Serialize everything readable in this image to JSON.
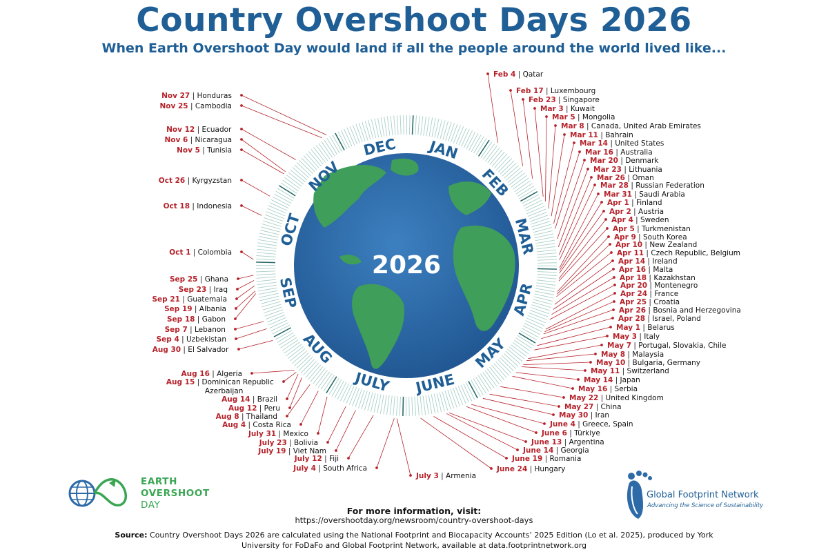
{
  "header": {
    "title": "Country Overshoot Days 2026",
    "subtitle": "When Earth Overshoot Day would land if all the people around the world lived like..."
  },
  "globe": {
    "year_label": "2026",
    "months": [
      "JAN",
      "FEB",
      "MAR",
      "APR",
      "MAY",
      "JUNE",
      "JULY",
      "AUG",
      "SEP",
      "OCT",
      "NOV",
      "DEC"
    ]
  },
  "colors": {
    "title_blue": "#1f5f96",
    "date_red": "#b5222a",
    "ocean": "#2d6aa8",
    "land": "#3f9e5a",
    "ring_teal": "#a9cfc6",
    "brand_green": "#3aa653"
  },
  "chart_data": {
    "type": "radial-timeline",
    "entries": [
      {
        "date": "Feb 4",
        "country": "Qatar"
      },
      {
        "date": "Feb 17",
        "country": "Luxembourg"
      },
      {
        "date": "Feb 23",
        "country": "Singapore"
      },
      {
        "date": "Mar 3",
        "country": "Kuwait"
      },
      {
        "date": "Mar 5",
        "country": "Mongolia"
      },
      {
        "date": "Mar 8",
        "country": "Canada, United Arab Emirates"
      },
      {
        "date": "Mar 11",
        "country": "Bahrain"
      },
      {
        "date": "Mar 14",
        "country": "United States"
      },
      {
        "date": "Mar 16",
        "country": "Australia"
      },
      {
        "date": "Mar 20",
        "country": "Denmark"
      },
      {
        "date": "Mar 23",
        "country": "Lithuania"
      },
      {
        "date": "Mar 26",
        "country": "Oman"
      },
      {
        "date": "Mar 28",
        "country": "Russian Federation"
      },
      {
        "date": "Mar 31",
        "country": "Saudi Arabia"
      },
      {
        "date": "Apr 1",
        "country": "Finland"
      },
      {
        "date": "Apr 2",
        "country": "Austria"
      },
      {
        "date": "Apr 4",
        "country": "Sweden"
      },
      {
        "date": "Apr 5",
        "country": "Turkmenistan"
      },
      {
        "date": "Apr 9",
        "country": "South Korea"
      },
      {
        "date": "Apr 10",
        "country": "New Zealand"
      },
      {
        "date": "Apr 11",
        "country": "Czech Republic, Belgium"
      },
      {
        "date": "Apr 14",
        "country": "Ireland"
      },
      {
        "date": "Apr 16",
        "country": "Malta"
      },
      {
        "date": "Apr 18",
        "country": "Kazakhstan"
      },
      {
        "date": "Apr 20",
        "country": "Montenegro"
      },
      {
        "date": "Apr 24",
        "country": "France"
      },
      {
        "date": "Apr 25",
        "country": "Croatia"
      },
      {
        "date": "Apr 26",
        "country": "Bosnia and Herzegovina"
      },
      {
        "date": "Apr 28",
        "country": "Israel, Poland"
      },
      {
        "date": "May 1",
        "country": "Belarus"
      },
      {
        "date": "May 3",
        "country": "Italy"
      },
      {
        "date": "May 7",
        "country": "Portugal, Slovakia, Chile"
      },
      {
        "date": "May 8",
        "country": "Malaysia"
      },
      {
        "date": "May 10",
        "country": "Bulgaria, Germany"
      },
      {
        "date": "May 11",
        "country": "Switzerland"
      },
      {
        "date": "May 14",
        "country": "Japan"
      },
      {
        "date": "May 16",
        "country": "Serbia"
      },
      {
        "date": "May 22",
        "country": "United Kingdom"
      },
      {
        "date": "May 27",
        "country": "China"
      },
      {
        "date": "May 30",
        "country": "Iran"
      },
      {
        "date": "June 4",
        "country": "Greece, Spain"
      },
      {
        "date": "June 6",
        "country": "Türkiye"
      },
      {
        "date": "June 13",
        "country": "Argentina"
      },
      {
        "date": "June 14",
        "country": "Georgia"
      },
      {
        "date": "June 19",
        "country": "Romania"
      },
      {
        "date": "June 24",
        "country": "Hungary"
      },
      {
        "date": "July 3",
        "country": "Armenia"
      },
      {
        "date": "July 4",
        "country": "South Africa"
      },
      {
        "date": "July 12",
        "country": "Fiji"
      },
      {
        "date": "July 19",
        "country": "Viet Nam"
      },
      {
        "date": "July 23",
        "country": "Bolivia"
      },
      {
        "date": "July 31",
        "country": "Mexico"
      },
      {
        "date": "Aug 4",
        "country": "Costa Rica"
      },
      {
        "date": "Aug 8",
        "country": "Thailand"
      },
      {
        "date": "Aug 12",
        "country": "Peru"
      },
      {
        "date": "Aug 14",
        "country": "Brazil"
      },
      {
        "date": "Aug 15",
        "country": "Dominican Republic Azerbaijan"
      },
      {
        "date": "Aug 16",
        "country": "Algeria"
      },
      {
        "date": "Aug 30",
        "country": "El Salvador"
      },
      {
        "date": "Sep 4",
        "country": "Uzbekistan"
      },
      {
        "date": "Sep 7",
        "country": "Lebanon"
      },
      {
        "date": "Sep 18",
        "country": "Gabon"
      },
      {
        "date": "Sep 19",
        "country": "Albania"
      },
      {
        "date": "Sep 21",
        "country": "Guatemala"
      },
      {
        "date": "Sep 23",
        "country": "Iraq"
      },
      {
        "date": "Sep 25",
        "country": "Ghana"
      },
      {
        "date": "Oct 1",
        "country": "Colombia"
      },
      {
        "date": "Oct 18",
        "country": "Indonesia"
      },
      {
        "date": "Oct 26",
        "country": "Kyrgyzstan"
      },
      {
        "date": "Nov 5",
        "country": "Tunisia"
      },
      {
        "date": "Nov 6",
        "country": "Nicaragua"
      },
      {
        "date": "Nov 12",
        "country": "Ecuador"
      },
      {
        "date": "Nov 25",
        "country": "Cambodia"
      },
      {
        "date": "Nov 27",
        "country": "Honduras"
      }
    ]
  },
  "footer": {
    "more_info": "For more information, visit:",
    "url": "https://overshootday.org/newsroom/country-overshoot-days",
    "source_label": "Source:",
    "source_text": "Country Overshoot Days 2026 are calculated using the National Footprint and Biocapacity Accounts’ 2025 Edition (Lo et al. 2025), produced by York University for FoDaFo and Global Footprint Network, available at data.footprintnetwork.org"
  },
  "logos": {
    "eod_line1": "EARTH",
    "eod_line2": "OVERSHOOT",
    "eod_line3": "DAY",
    "gfn_name": "Global Footprint Network",
    "gfn_tagline": "Advancing the Science of Sustainability"
  }
}
